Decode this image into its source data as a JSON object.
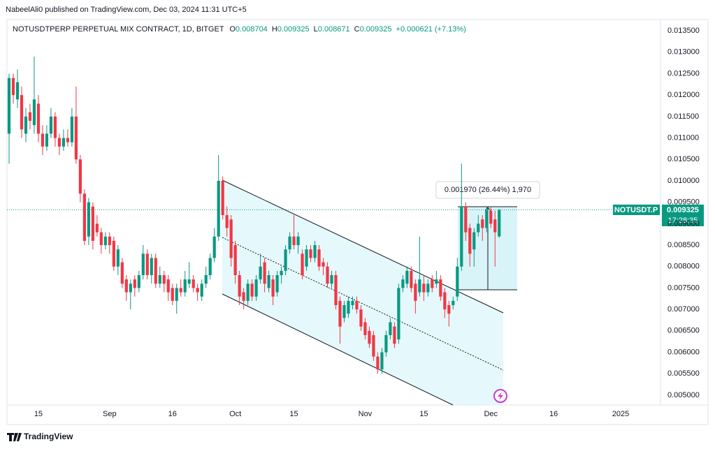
{
  "published": "NabeelAli0 published on TradingView.com, Dec 03, 2024 11:31 UTC+5",
  "brand": "TradingView",
  "chart_data": {
    "type": "candlestick",
    "title": "NOTUSDTPERP PERPETUAL MIX CONTRACT, 1D, BITGET",
    "legend": {
      "o_label": "O",
      "o_value": "0.008704",
      "h_label": "H",
      "h_value": "0.009325",
      "l_label": "L",
      "l_value": "0.008671",
      "c_label": "C",
      "c_value": "0.009325",
      "change": "+0.000621 (+7.13%)"
    },
    "symbol_label": "NOTUSDT.P",
    "countdown": "17:28:35",
    "measure_label": "0.001970 (26.44%) 1,970",
    "up_color": "#089981",
    "down_color": "#f23645",
    "ylim": [
      0.00477,
      0.01373
    ],
    "yticks": [
      {
        "value": 0.005,
        "label": "0.005000"
      },
      {
        "value": 0.0055,
        "label": "0.005500"
      },
      {
        "value": 0.006,
        "label": "0.006000"
      },
      {
        "value": 0.0065,
        "label": "0.006500"
      },
      {
        "value": 0.007,
        "label": "0.007000"
      },
      {
        "value": 0.0075,
        "label": "0.007500"
      },
      {
        "value": 0.008,
        "label": "0.008000"
      },
      {
        "value": 0.0085,
        "label": "0.008500"
      },
      {
        "value": 0.009,
        "label": "0.009000"
      },
      {
        "value": 0.0095,
        "label": "0.009500"
      },
      {
        "value": 0.01,
        "label": "0.010000"
      },
      {
        "value": 0.0105,
        "label": "0.010500"
      },
      {
        "value": 0.011,
        "label": "0.011000"
      },
      {
        "value": 0.0115,
        "label": "0.011500"
      },
      {
        "value": 0.012,
        "label": "0.012000"
      },
      {
        "value": 0.0125,
        "label": "0.012500"
      },
      {
        "value": 0.013,
        "label": "0.013000"
      },
      {
        "value": 0.0135,
        "label": "0.013500"
      }
    ],
    "xlim": [
      -0.5,
      155.5
    ],
    "xticks": [
      {
        "value": 7,
        "label": "15"
      },
      {
        "value": 24,
        "label": "Sep"
      },
      {
        "value": 39,
        "label": "16"
      },
      {
        "value": 54,
        "label": "Oct"
      },
      {
        "value": 68,
        "label": "15"
      },
      {
        "value": 85,
        "label": "Nov"
      },
      {
        "value": 99,
        "label": "15"
      },
      {
        "value": 115,
        "label": "Dec"
      },
      {
        "value": 130,
        "label": "16"
      },
      {
        "value": 146,
        "label": "2025"
      }
    ],
    "ohlc": [
      [
        0.0111,
        0.0125,
        0.0104,
        0.0124
      ],
      [
        0.0124,
        0.0125,
        0.0118,
        0.012
      ],
      [
        0.0119,
        0.0126,
        0.0117,
        0.0123
      ],
      [
        0.012,
        0.0122,
        0.011,
        0.0112
      ],
      [
        0.0111,
        0.0117,
        0.0109,
        0.0115
      ],
      [
        0.0116,
        0.0118,
        0.0112,
        0.0114
      ],
      [
        0.0113,
        0.0129,
        0.0111,
        0.0119
      ],
      [
        0.0118,
        0.012,
        0.0109,
        0.0111
      ],
      [
        0.0111,
        0.0113,
        0.0106,
        0.0108
      ],
      [
        0.0108,
        0.0113,
        0.0107,
        0.0111
      ],
      [
        0.0111,
        0.0117,
        0.011,
        0.0115
      ],
      [
        0.0115,
        0.0116,
        0.0108,
        0.011
      ],
      [
        0.011,
        0.0111,
        0.0106,
        0.0108
      ],
      [
        0.0108,
        0.0112,
        0.0107,
        0.011
      ],
      [
        0.011,
        0.0112,
        0.0108,
        0.0109
      ],
      [
        0.0109,
        0.0117,
        0.0108,
        0.0115
      ],
      [
        0.0115,
        0.0122,
        0.0104,
        0.0105
      ],
      [
        0.0105,
        0.0106,
        0.0095,
        0.0097
      ],
      [
        0.0097,
        0.0098,
        0.0085,
        0.0086
      ],
      [
        0.0087,
        0.0096,
        0.0085,
        0.0095
      ],
      [
        0.0094,
        0.0095,
        0.0084,
        0.0086
      ],
      [
        0.009,
        0.0092,
        0.0087,
        0.0088
      ],
      [
        0.0088,
        0.0089,
        0.0083,
        0.0085
      ],
      [
        0.0085,
        0.0088,
        0.0084,
        0.0087
      ],
      [
        0.0087,
        0.0088,
        0.0083,
        0.0085
      ],
      [
        0.0086,
        0.0087,
        0.0079,
        0.008
      ],
      [
        0.008,
        0.0085,
        0.0078,
        0.0084
      ],
      [
        0.0081,
        0.0082,
        0.0075,
        0.0076
      ],
      [
        0.0077,
        0.0078,
        0.0072,
        0.0074
      ],
      [
        0.0074,
        0.0077,
        0.007,
        0.0076
      ],
      [
        0.0077,
        0.0078,
        0.0073,
        0.0075
      ],
      [
        0.0075,
        0.0079,
        0.0074,
        0.0078
      ],
      [
        0.0078,
        0.0085,
        0.0077,
        0.0083
      ],
      [
        0.0083,
        0.0084,
        0.0077,
        0.0078
      ],
      [
        0.0078,
        0.0083,
        0.0076,
        0.0082
      ],
      [
        0.0082,
        0.0083,
        0.0075,
        0.0076
      ],
      [
        0.0076,
        0.008,
        0.0075,
        0.0078
      ],
      [
        0.0078,
        0.0079,
        0.0074,
        0.0076
      ],
      [
        0.0077,
        0.0078,
        0.0072,
        0.0074
      ],
      [
        0.0075,
        0.0076,
        0.0071,
        0.0072
      ],
      [
        0.0072,
        0.0076,
        0.0069,
        0.0075
      ],
      [
        0.0075,
        0.0077,
        0.0073,
        0.0074
      ],
      [
        0.0074,
        0.0079,
        0.0073,
        0.0077
      ],
      [
        0.0076,
        0.0081,
        0.0075,
        0.0077
      ],
      [
        0.0077,
        0.0078,
        0.0074,
        0.0075
      ],
      [
        0.0075,
        0.0076,
        0.0072,
        0.0074
      ],
      [
        0.0073,
        0.0077,
        0.0072,
        0.0076
      ],
      [
        0.0076,
        0.008,
        0.0075,
        0.0078
      ],
      [
        0.0078,
        0.0083,
        0.0077,
        0.0082
      ],
      [
        0.0082,
        0.0089,
        0.0081,
        0.0087
      ],
      [
        0.0087,
        0.0106,
        0.0086,
        0.01
      ],
      [
        0.01,
        0.0101,
        0.0091,
        0.0092
      ],
      [
        0.0092,
        0.0094,
        0.0087,
        0.0089
      ],
      [
        0.0091,
        0.0092,
        0.008,
        0.0082
      ],
      [
        0.0085,
        0.0086,
        0.0076,
        0.0078
      ],
      [
        0.0078,
        0.0079,
        0.0071,
        0.0073
      ],
      [
        0.0074,
        0.0075,
        0.007,
        0.0072
      ],
      [
        0.0072,
        0.0077,
        0.0071,
        0.0076
      ],
      [
        0.0076,
        0.0077,
        0.0072,
        0.0073
      ],
      [
        0.0073,
        0.0078,
        0.0072,
        0.0077
      ],
      [
        0.0077,
        0.0083,
        0.0076,
        0.008
      ],
      [
        0.0081,
        0.0082,
        0.0074,
        0.0076
      ],
      [
        0.0075,
        0.0079,
        0.0074,
        0.0078
      ],
      [
        0.0077,
        0.0078,
        0.0071,
        0.0073
      ],
      [
        0.0074,
        0.0079,
        0.0073,
        0.0078
      ],
      [
        0.0078,
        0.008,
        0.0076,
        0.0079
      ],
      [
        0.0079,
        0.0085,
        0.0078,
        0.0084
      ],
      [
        0.0084,
        0.0088,
        0.0083,
        0.0087
      ],
      [
        0.0087,
        0.0092,
        0.0084,
        0.0085
      ],
      [
        0.0085,
        0.0088,
        0.0083,
        0.0087
      ],
      [
        0.0083,
        0.0084,
        0.0077,
        0.0078
      ],
      [
        0.008,
        0.0085,
        0.0079,
        0.0084
      ],
      [
        0.0084,
        0.0085,
        0.0081,
        0.0082
      ],
      [
        0.0082,
        0.0086,
        0.0081,
        0.0085
      ],
      [
        0.0084,
        0.0085,
        0.0079,
        0.008
      ],
      [
        0.0081,
        0.0082,
        0.0078,
        0.008
      ],
      [
        0.008,
        0.0081,
        0.0075,
        0.0076
      ],
      [
        0.0076,
        0.0079,
        0.0075,
        0.0078
      ],
      [
        0.0078,
        0.0079,
        0.007,
        0.0071
      ],
      [
        0.0072,
        0.0073,
        0.0062,
        0.0066
      ],
      [
        0.0068,
        0.0072,
        0.0067,
        0.0071
      ],
      [
        0.0069,
        0.0073,
        0.0068,
        0.0072
      ],
      [
        0.0071,
        0.0073,
        0.007,
        0.0072
      ],
      [
        0.0072,
        0.0073,
        0.0069,
        0.007
      ],
      [
        0.007,
        0.0071,
        0.0065,
        0.0066
      ],
      [
        0.0067,
        0.0068,
        0.0063,
        0.0064
      ],
      [
        0.0065,
        0.0066,
        0.0061,
        0.0062
      ],
      [
        0.0064,
        0.0065,
        0.0058,
        0.0059
      ],
      [
        0.0059,
        0.006,
        0.0055,
        0.0056
      ],
      [
        0.0056,
        0.0061,
        0.0055,
        0.006
      ],
      [
        0.006,
        0.0065,
        0.0059,
        0.0064
      ],
      [
        0.0064,
        0.0068,
        0.0063,
        0.0067
      ],
      [
        0.0066,
        0.0067,
        0.0061,
        0.0062
      ],
      [
        0.0063,
        0.0076,
        0.0062,
        0.0075
      ],
      [
        0.0075,
        0.0078,
        0.0074,
        0.0077
      ],
      [
        0.0076,
        0.008,
        0.0075,
        0.0079
      ],
      [
        0.0079,
        0.008,
        0.0074,
        0.0075
      ],
      [
        0.0076,
        0.0077,
        0.0069,
        0.0072
      ],
      [
        0.0074,
        0.0087,
        0.0073,
        0.0077
      ],
      [
        0.0076,
        0.0078,
        0.0072,
        0.0074
      ],
      [
        0.0074,
        0.0077,
        0.0073,
        0.0076
      ],
      [
        0.0077,
        0.0078,
        0.0074,
        0.0075
      ],
      [
        0.0076,
        0.0079,
        0.0075,
        0.0077
      ],
      [
        0.0077,
        0.0078,
        0.0072,
        0.0073
      ],
      [
        0.0074,
        0.0075,
        0.0068,
        0.007
      ],
      [
        0.0071,
        0.0072,
        0.0066,
        0.0069
      ],
      [
        0.0071,
        0.0073,
        0.007,
        0.0072
      ],
      [
        0.0073,
        0.0082,
        0.0072,
        0.008
      ],
      [
        0.008,
        0.0104,
        0.0079,
        0.0094
      ],
      [
        0.0094,
        0.0095,
        0.0086,
        0.0088
      ],
      [
        0.0089,
        0.009,
        0.008,
        0.0083
      ],
      [
        0.0084,
        0.0089,
        0.008,
        0.0088
      ],
      [
        0.0088,
        0.0092,
        0.0087,
        0.009
      ],
      [
        0.0091,
        0.0092,
        0.0086,
        0.0089
      ],
      [
        0.0089,
        0.0094,
        0.0088,
        0.0093
      ],
      [
        0.0093,
        0.0094,
        0.0089,
        0.009
      ],
      [
        0.0091,
        0.0093,
        0.008,
        0.0088
      ],
      [
        0.008704,
        0.009325,
        0.008671,
        0.009325
      ]
    ]
  }
}
